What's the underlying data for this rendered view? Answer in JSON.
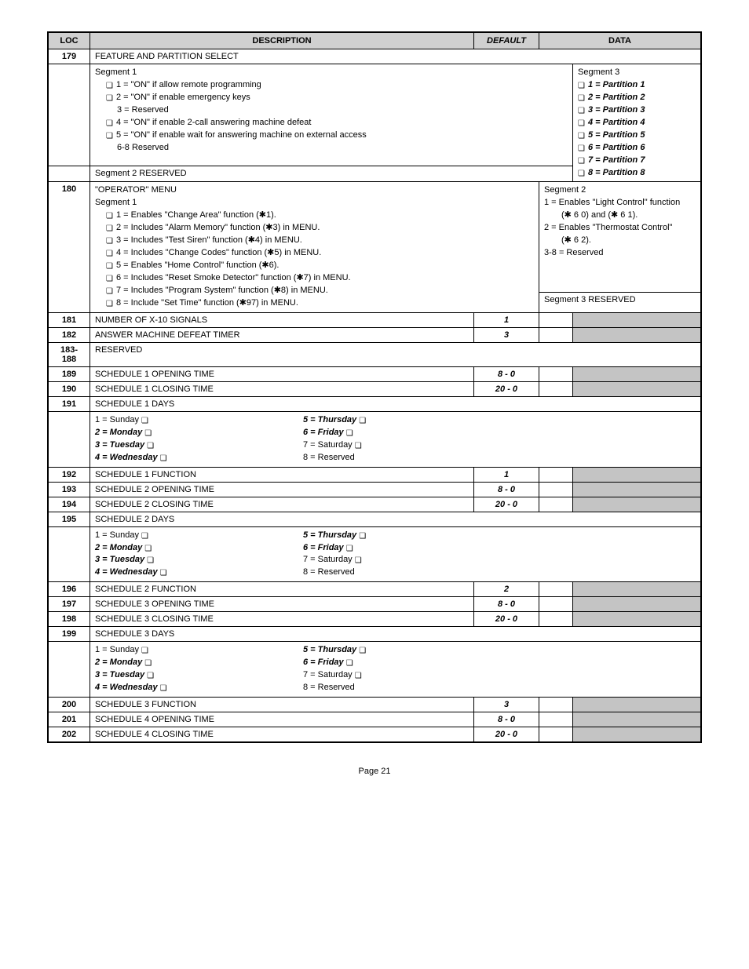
{
  "headers": {
    "loc": "LOC",
    "desc": "DESCRIPTION",
    "default": "DEFAULT",
    "data": "DATA"
  },
  "r179": {
    "loc": "179",
    "title": "FEATURE AND PARTITION SELECT",
    "seg1_label": "Segment 1",
    "seg1_items": [
      "1 = \"ON\" if allow remote programming",
      "2 = \"ON\" if enable emergency keys",
      "3 =  Reserved",
      "4 = \"ON\" if enable 2-call answering machine defeat",
      "5 = \"ON\" if enable wait for answering machine on external access",
      "6-8 Reserved"
    ],
    "seg2": "Segment 2   RESERVED",
    "seg3_label": "Segment 3",
    "seg3_items": [
      "1 = Partition 1",
      "2 = Partition 2",
      "3 = Partition 3",
      "4 = Partition 4",
      "5 = Partition 5",
      "6 = Partition 6",
      "7 = Partition 7",
      "8 = Partition 8"
    ]
  },
  "r180": {
    "loc": "180",
    "title": "\"OPERATOR\" MENU",
    "seg1_label": "Segment 1",
    "seg1_items": [
      "1 = Enables \"Change Area\" function (✱1).",
      "2 = Includes \"Alarm Memory\" function (✱3) in MENU.",
      "3 = Includes \"Test Siren\" function (✱4) in MENU.",
      "4 = Includes \"Change Codes\" function (✱5) in MENU.",
      "5 = Enables \"Home Control\" function (✱6).",
      "6 = Includes \"Reset Smoke Detector\" function (✱7) in MENU.",
      "7 = Includes \"Program System\" function (✱8) in MENU.",
      "8 = Include \"Set Time\" function (✱97) in MENU."
    ],
    "seg2_label": "Segment 2",
    "seg2_items": [
      "1 = Enables \"Light Control\" function",
      "(✱ 6 0) and (✱ 6 1).",
      "2 = Enables \"Thermostat Control\"",
      "(✱ 6 2).",
      "3-8 = Reserved"
    ],
    "seg3": "Segment 3   RESERVED"
  },
  "r181": {
    "loc": "181",
    "desc": "NUMBER OF X-10 SIGNALS",
    "default": "1"
  },
  "r182": {
    "loc": "182",
    "desc": "ANSWER MACHINE DEFEAT TIMER",
    "default": "3"
  },
  "r183": {
    "loc": "183-188",
    "desc": "RESERVED"
  },
  "r189": {
    "loc": "189",
    "desc": "SCHEDULE 1 OPENING TIME",
    "default": "8 - 0"
  },
  "r190": {
    "loc": "190",
    "desc": "SCHEDULE 1 CLOSING TIME",
    "default": "20 - 0"
  },
  "r191": {
    "loc": "191",
    "desc": "SCHEDULE 1 DAYS"
  },
  "days": {
    "c1": [
      "1 = Sunday",
      "2 = Monday",
      "3 = Tuesday",
      "4 = Wednesday"
    ],
    "c2": [
      "5 = Thursday",
      "6 = Friday",
      "7 = Saturday",
      "8 = Reserved"
    ],
    "bold1": [
      false,
      true,
      true,
      true
    ],
    "bold2": [
      true,
      true,
      false,
      false
    ],
    "check2": [
      true,
      true,
      true,
      false
    ]
  },
  "r192": {
    "loc": "192",
    "desc": "SCHEDULE 1 FUNCTION",
    "default": "1"
  },
  "r193": {
    "loc": "193",
    "desc": "SCHEDULE 2 OPENING TIME",
    "default": "8 - 0"
  },
  "r194": {
    "loc": "194",
    "desc": "SCHEDULE 2 CLOSING TIME",
    "default": "20 - 0"
  },
  "r195": {
    "loc": "195",
    "desc": "SCHEDULE 2 DAYS"
  },
  "r196": {
    "loc": "196",
    "desc": "SCHEDULE 2 FUNCTION",
    "default": "2"
  },
  "r197": {
    "loc": "197",
    "desc": "SCHEDULE 3 OPENING TIME",
    "default": "8 - 0"
  },
  "r198": {
    "loc": "198",
    "desc": "SCHEDULE 3 CLOSING TIME",
    "default": "20 - 0"
  },
  "r199": {
    "loc": "199",
    "desc": "SCHEDULE 3 DAYS"
  },
  "r200": {
    "loc": "200",
    "desc": "SCHEDULE 3 FUNCTION",
    "default": "3"
  },
  "r201": {
    "loc": "201",
    "desc": "SCHEDULE 4 OPENING TIME",
    "default": "8 - 0"
  },
  "r202": {
    "loc": "202",
    "desc": "SCHEDULE 4 CLOSING TIME",
    "default": "20 - 0"
  },
  "page": "Page 21"
}
